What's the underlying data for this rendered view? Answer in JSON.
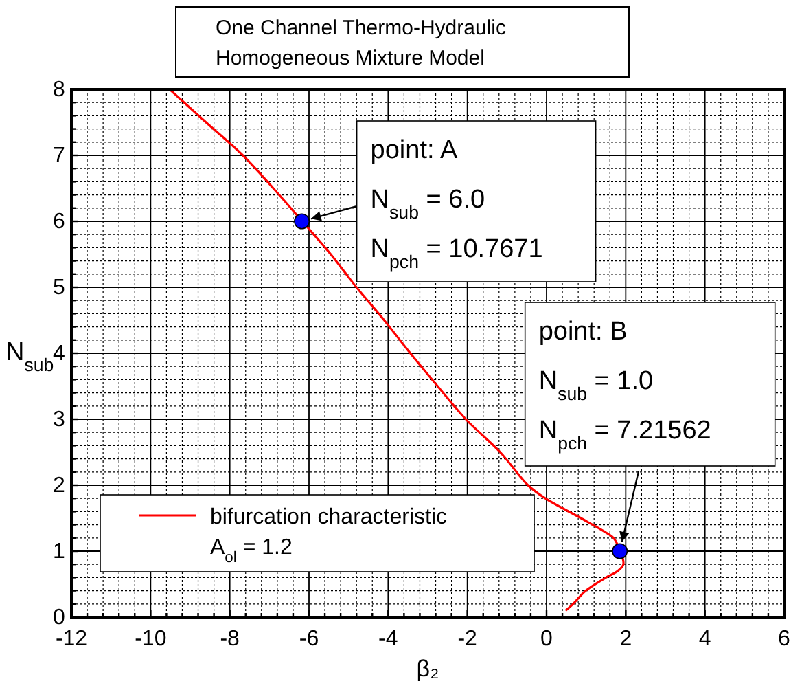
{
  "chart_data": {
    "type": "line",
    "title": "One Channel Thermo-Hydraulic\nHomogeneous Mixture Model",
    "xlabel": "β₂",
    "ylabel": "N$_{sub}$",
    "legend_title": "A$_{ol}$ = 1.2",
    "legend": "bottom left",
    "grid": true,
    "xlim": [
      -12,
      6
    ],
    "ylim": [
      0,
      8
    ],
    "xticks": [
      -12,
      {
        "value": -11.6,
        "label": null
      },
      {
        "value": -11.2,
        "label": null
      },
      {
        "value": -10.8,
        "label": null
      },
      {
        "value": -10.4,
        "label": null
      },
      -10,
      {
        "value": -9.6,
        "label": null
      },
      {
        "value": -9.2,
        "label": null
      },
      {
        "value": -8.8,
        "label": null
      },
      {
        "value": -8.4,
        "label": null
      },
      -8,
      {
        "value": -7.6,
        "label": null
      },
      {
        "value": -7.2,
        "label": null
      },
      {
        "value": -6.8,
        "label": null
      },
      {
        "value": -6.4,
        "label": null
      },
      -6,
      {
        "value": -5.6,
        "label": null
      },
      {
        "value": -5.2,
        "label": null
      },
      {
        "value": -4.8,
        "label": null
      },
      {
        "value": -4.4,
        "label": null
      },
      -4,
      {
        "value": -3.6,
        "label": null
      },
      {
        "value": -3.2,
        "label": null
      },
      {
        "value": -2.8,
        "label": null
      },
      {
        "value": -2.4,
        "label": null
      },
      -2,
      {
        "value": -1.6,
        "label": null
      },
      {
        "value": -1.2,
        "label": null
      },
      {
        "value": -0.8,
        "label": null
      },
      {
        "value": -0.4,
        "label": null
      },
      0,
      {
        "value": 0.4,
        "label": null
      },
      {
        "value": 0.8,
        "label": null
      },
      {
        "value": 1.2,
        "label": null
      },
      {
        "value": 1.6,
        "label": null
      },
      2,
      {
        "value": 2.4,
        "label": null
      },
      {
        "value": 2.8,
        "label": null
      },
      {
        "value": 3.2,
        "label": null
      },
      {
        "value": 3.6,
        "label": null
      },
      4,
      {
        "value": 4.4,
        "label": null
      },
      {
        "value": 4.8,
        "label": null
      },
      {
        "value": 5.2,
        "label": null
      },
      {
        "value": 5.6,
        "label": null
      },
      6
    ],
    "yticks": [
      0,
      {
        "value": 0.2,
        "label": null
      },
      {
        "value": 0.4,
        "label": null
      },
      {
        "value": 0.6,
        "label": null
      },
      {
        "value": 0.8,
        "label": null
      },
      1,
      {
        "value": 1.2,
        "label": null
      },
      {
        "value": 1.4,
        "label": null
      },
      {
        "value": 1.6,
        "label": null
      },
      {
        "value": 1.8,
        "label": null
      },
      2,
      {
        "value": 2.2,
        "label": null
      },
      {
        "value": 2.4,
        "label": null
      },
      {
        "value": 2.6,
        "label": null
      },
      {
        "value": 2.8,
        "label": null
      },
      3,
      {
        "value": 3.2,
        "label": null
      },
      {
        "value": 3.4,
        "label": null
      },
      {
        "value": 3.6,
        "label": null
      },
      {
        "value": 3.8,
        "label": null
      },
      4,
      {
        "value": 4.2,
        "label": null
      },
      {
        "value": 4.4,
        "label": null
      },
      {
        "value": 4.6,
        "label": null
      },
      {
        "value": 4.8,
        "label": null
      },
      5,
      {
        "value": 5.2,
        "label": null
      },
      {
        "value": 5.4,
        "label": null
      },
      {
        "value": 5.6,
        "label": null
      },
      {
        "value": 5.8,
        "label": null
      },
      6,
      {
        "value": 6.2,
        "label": null
      },
      {
        "value": 6.4,
        "label": null
      },
      {
        "value": 6.6,
        "label": null
      },
      {
        "value": 6.8,
        "label": null
      },
      7,
      {
        "value": 7.2,
        "label": null
      },
      {
        "value": 7.4,
        "label": null
      },
      {
        "value": 7.6,
        "label": null
      },
      {
        "value": 7.8,
        "label": null
      },
      8
    ],
    "series": [
      {
        "name": "bifurcation characteristic",
        "color": "#ff0000",
        "marker": "none",
        "x": [
          -9.52,
          -8.6,
          -7.67,
          -6.9,
          -6.17,
          -5.45,
          -4.8,
          -4.1,
          -3.44,
          -2.75,
          -2.04,
          -1.17,
          -0.47,
          -0.03,
          0.87,
          1.45,
          1.69,
          1.86,
          1.94,
          1.8,
          1.5,
          0.99,
          0.67,
          0.48
        ],
        "values": [
          8,
          7.5,
          7,
          6.5,
          6,
          5.5,
          5,
          4.5,
          4,
          3.5,
          3,
          2.5,
          2,
          1.8,
          1.5,
          1.3,
          1.2,
          1,
          0.8,
          0.7,
          0.6,
          0.4,
          0.2,
          0.1
        ]
      },
      {
        "type": "scatter",
        "color": "#0000ff",
        "marker": "circle",
        "x": [
          -6.18,
          1.85
        ],
        "values": [
          6,
          1
        ]
      }
    ],
    "annotations": [
      "point: A",
      {
        "text": "N$_{sub}$ = 6.0",
        "x": -6.18,
        "y": 6
      },
      "N$_{pch}$ = 10.7671",
      "point: B",
      "N$_{sub}$ = 1.0",
      {
        "text": "N$_{pch}$ = 7.21562",
        "x": 1.85,
        "y": 1
      }
    ]
  }
}
